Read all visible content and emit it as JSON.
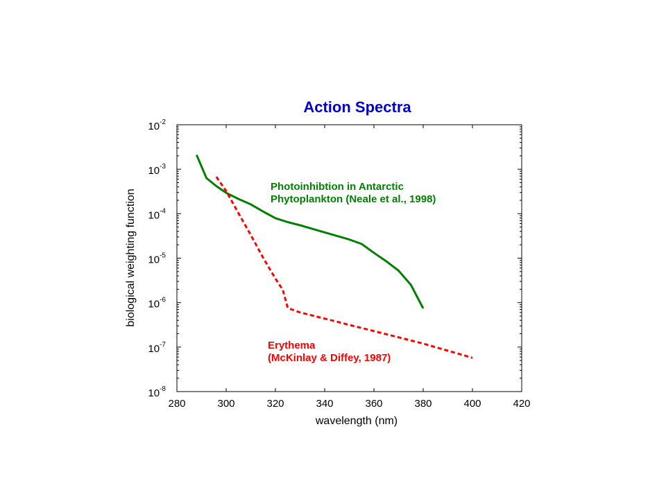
{
  "chart_data": {
    "type": "line",
    "title": "Action Spectra",
    "title_color": "#0000cc",
    "xlabel": "wavelength (nm)",
    "ylabel": "biological weighting function",
    "xlim": [
      280,
      420
    ],
    "ylim_log10": [
      -8,
      -2
    ],
    "y_scale": "log",
    "grid": false,
    "x_ticks": [
      280,
      300,
      320,
      340,
      360,
      380,
      400,
      420
    ],
    "y_ticks": [
      {
        "base": "10",
        "exp": "-8",
        "value": -8
      },
      {
        "base": "10",
        "exp": "-7",
        "value": -7
      },
      {
        "base": "10",
        "exp": "-6",
        "value": -6
      },
      {
        "base": "10",
        "exp": "-5",
        "value": -5
      },
      {
        "base": "10",
        "exp": "-4",
        "value": -4
      },
      {
        "base": "10",
        "exp": "-3",
        "value": -3
      },
      {
        "base": "10",
        "exp": "-2",
        "value": -2
      }
    ],
    "series": [
      {
        "color": "#008000",
        "style": "solid",
        "label_lines": [
          "Photoinhibtion in Antarctic",
          "Phytoplankton (Neale et al., 1998)"
        ],
        "x": [
          288,
          292,
          296,
          300,
          305,
          310,
          315,
          320,
          325,
          330,
          335,
          340,
          345,
          350,
          355,
          360,
          365,
          370,
          375,
          380
        ],
        "y": [
          0.00209,
          0.00063,
          0.000417,
          0.000295,
          0.000214,
          0.000162,
          0.000112,
          7.94e-05,
          6.46e-05,
          5.5e-05,
          4.57e-05,
          3.8e-05,
          3.16e-05,
          2.63e-05,
          2.09e-05,
          1.32e-05,
          8.51e-06,
          5.25e-06,
          2.51e-06,
          7.41e-07
        ]
      },
      {
        "color": "#ff0000",
        "style": "dashed",
        "label_lines": [
          "Erythema",
          "(McKinlay & Diffey, 1987)"
        ],
        "x": [
          296,
          300,
          305,
          310,
          315,
          320,
          323,
          325,
          330,
          340,
          350,
          360,
          370,
          380,
          390,
          400
        ],
        "y": [
          0.000676,
          0.000324,
          0.000102,
          3.31e-05,
          1.02e-05,
          3.47e-06,
          1.95e-06,
          7.59e-07,
          6.03e-07,
          4.37e-07,
          3.16e-07,
          2.29e-07,
          1.66e-07,
          1.2e-07,
          8.32e-08,
          5.75e-08
        ]
      }
    ]
  }
}
